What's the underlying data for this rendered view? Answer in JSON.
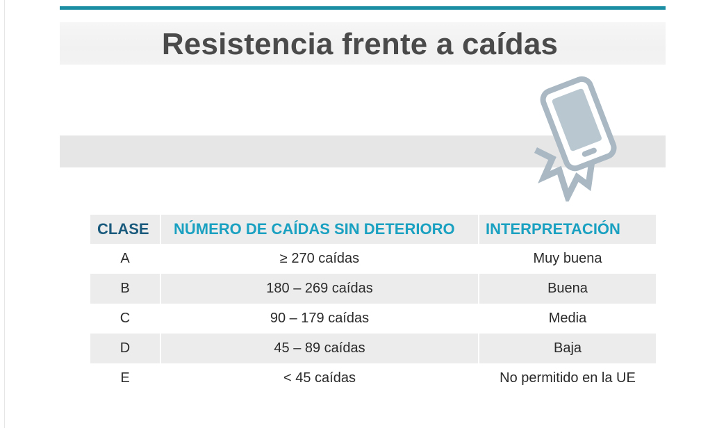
{
  "title": "Resistencia frente a caídas",
  "colors": {
    "accent": "#1b8ea3",
    "header_text": "#1aa0c0",
    "class_header_text": "#1a5a7c",
    "band": "#e6e6e6"
  },
  "icon": "cracked-phone-icon",
  "table": {
    "headers": [
      "CLASE",
      "NÚMERO DE CAÍDAS SIN DETERIORO",
      "INTERPRETACIÓN"
    ],
    "rows": [
      {
        "clase": "A",
        "caidas": "≥ 270 caídas",
        "interpretacion": "Muy buena"
      },
      {
        "clase": "B",
        "caidas": "180 – 269 caídas",
        "interpretacion": "Buena"
      },
      {
        "clase": "C",
        "caidas": "90 – 179 caídas",
        "interpretacion": "Media"
      },
      {
        "clase": "D",
        "caidas": "45 – 89 caídas",
        "interpretacion": "Baja"
      },
      {
        "clase": "E",
        "caidas": "< 45 caídas",
        "interpretacion": "No permitido en la UE"
      }
    ]
  }
}
